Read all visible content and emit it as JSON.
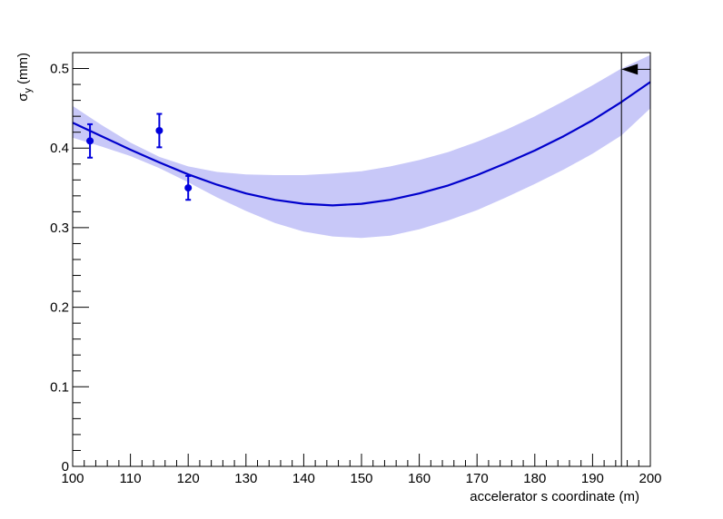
{
  "chart_data": {
    "type": "line",
    "title": "",
    "xlabel": "accelerator s coordinate (m)",
    "ylabel": {
      "symbol": "σ",
      "subscript": "y",
      "unit": "(mm)"
    },
    "xlim": [
      100,
      200
    ],
    "ylim": [
      0,
      0.52
    ],
    "x_ticks": [
      100,
      110,
      120,
      130,
      140,
      150,
      160,
      170,
      180,
      190,
      200
    ],
    "y_ticks": [
      0,
      0.1,
      0.2,
      0.3,
      0.4,
      0.5
    ],
    "x_tick_labels": [
      "100",
      "110",
      "120",
      "130",
      "140",
      "150",
      "160",
      "170",
      "180",
      "190",
      "200"
    ],
    "y_tick_labels": [
      "0",
      "0.1",
      "0.2",
      "0.3",
      "0.4",
      "0.5"
    ],
    "grid": false,
    "fit_curve": {
      "color": "#0000cc",
      "x": [
        100,
        105,
        110,
        115,
        120,
        125,
        130,
        135,
        140,
        145,
        150,
        155,
        160,
        165,
        170,
        175,
        180,
        185,
        190,
        195,
        200
      ],
      "y": [
        0.432,
        0.415,
        0.398,
        0.382,
        0.367,
        0.354,
        0.343,
        0.335,
        0.33,
        0.328,
        0.33,
        0.335,
        0.343,
        0.353,
        0.366,
        0.381,
        0.397,
        0.415,
        0.435,
        0.458,
        0.483
      ]
    },
    "confidence_band": {
      "color": "#c8c8f8",
      "x": [
        100,
        105,
        110,
        115,
        120,
        125,
        130,
        135,
        140,
        145,
        150,
        155,
        160,
        165,
        170,
        175,
        180,
        185,
        190,
        195,
        200
      ],
      "upper": [
        0.453,
        0.429,
        0.407,
        0.389,
        0.377,
        0.37,
        0.367,
        0.366,
        0.366,
        0.368,
        0.371,
        0.377,
        0.385,
        0.395,
        0.408,
        0.423,
        0.44,
        0.459,
        0.479,
        0.5,
        0.517
      ],
      "lower": [
        0.413,
        0.402,
        0.39,
        0.375,
        0.357,
        0.338,
        0.321,
        0.306,
        0.295,
        0.289,
        0.287,
        0.29,
        0.298,
        0.309,
        0.322,
        0.338,
        0.355,
        0.373,
        0.393,
        0.416,
        0.45
      ]
    },
    "points": {
      "color": "#0000dd",
      "x": [
        103,
        115,
        120
      ],
      "y": [
        0.409,
        0.422,
        0.35
      ],
      "yerr": [
        0.021,
        0.021,
        0.015
      ]
    },
    "marker": {
      "x": 195,
      "arrow_y": 0.499,
      "arrow_direction": "left"
    }
  }
}
